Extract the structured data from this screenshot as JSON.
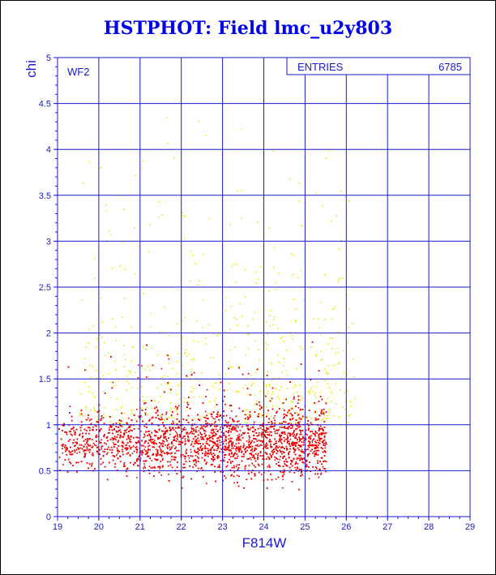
{
  "title": "HSTPHOT: Field lmc_u2y803",
  "chart_data": {
    "type": "scatter",
    "xlabel": "F814W",
    "ylabel": "chi",
    "xlim": [
      19,
      29
    ],
    "ylim": [
      0,
      5
    ],
    "xticks": [
      "19",
      "20",
      "21",
      "22",
      "23",
      "24",
      "25",
      "26",
      "27",
      "28",
      "29"
    ],
    "yticks": [
      "0",
      "0.5",
      "1",
      "1.5",
      "2",
      "2.5",
      "3",
      "3.5",
      "4",
      "4.5",
      "5"
    ],
    "grid": true,
    "panel_label": "WF2",
    "stats": {
      "label": "ENTRIES",
      "value": "6785"
    },
    "colors": {
      "axis": "#1a1acc",
      "grid": "#1a1acc",
      "good": "#ee0000",
      "bad": "#eeee00",
      "title": "#0000ee"
    },
    "series": [
      {
        "color": "#ee0000",
        "distribution": "dense band",
        "x_range": [
          19.0,
          25.5
        ],
        "y_center": 0.82,
        "y_spread": 0.15,
        "approx_points": 5600
      },
      {
        "color": "#eeee00",
        "distribution": "sparse scatter above band",
        "x_range": [
          19.5,
          26.2
        ],
        "y_range": [
          1.0,
          4.7
        ],
        "approx_points": 600
      }
    ]
  }
}
